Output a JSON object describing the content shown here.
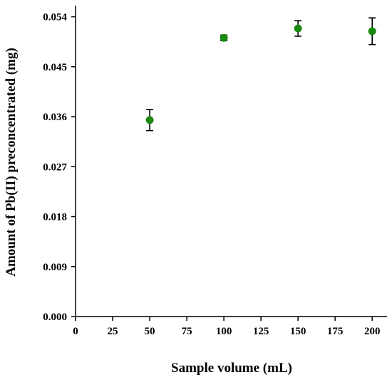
{
  "chart_data": {
    "type": "scatter",
    "title": "",
    "xlabel": "Sample volume (mL)",
    "ylabel": "Amount of Pb(II) preconcentrated (mg)",
    "xlim": [
      0,
      210
    ],
    "ylim": [
      0,
      0.056
    ],
    "x_ticks": [
      "0",
      "25",
      "50",
      "75",
      "100",
      "125",
      "150",
      "175",
      "200"
    ],
    "x_tick_values": [
      0,
      25,
      50,
      75,
      100,
      125,
      150,
      175,
      200
    ],
    "y_ticks": [
      "0.000",
      "0.009",
      "0.018",
      "0.027",
      "0.036",
      "0.045",
      "0.054"
    ],
    "y_tick_values": [
      0,
      0.009,
      0.018,
      0.027,
      0.036,
      0.045,
      0.054
    ],
    "grid": false,
    "marker_color": "#1a8a0f",
    "series": [
      {
        "x": [
          50,
          100,
          150,
          200
        ],
        "y": [
          0.0354,
          0.0502,
          0.0519,
          0.0514
        ],
        "error": [
          0.0019,
          0.0005,
          0.0014,
          0.0024
        ]
      }
    ]
  }
}
